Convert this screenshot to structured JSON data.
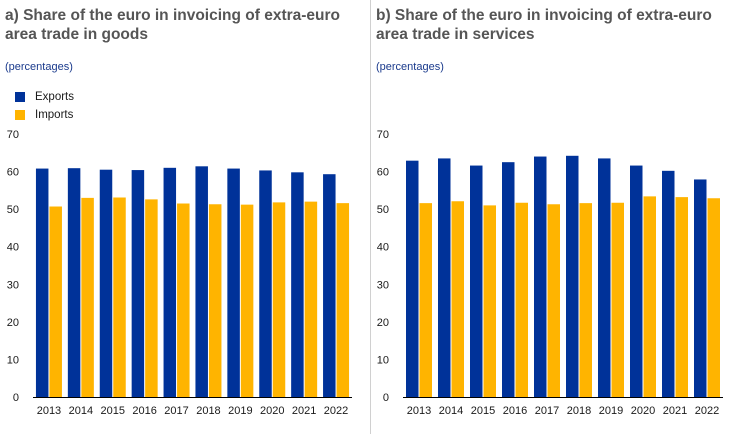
{
  "colors": {
    "exports": "#003299",
    "imports": "#ffb400",
    "axis": "#000000"
  },
  "chart_data": [
    {
      "type": "bar",
      "title": "a) Share of the euro in invoicing of extra-euro area trade in goods",
      "unit_label": "(percentages)",
      "categories": [
        "2013",
        "2014",
        "2015",
        "2016",
        "2017",
        "2018",
        "2019",
        "2020",
        "2021",
        "2022"
      ],
      "series": [
        {
          "name": "Exports",
          "values": [
            60.8,
            60.9,
            60.5,
            60.4,
            61.0,
            61.4,
            60.8,
            60.3,
            59.8,
            59.3
          ]
        },
        {
          "name": "Imports",
          "values": [
            50.7,
            53.0,
            53.1,
            52.6,
            51.5,
            51.3,
            51.2,
            51.8,
            52.0,
            51.6
          ]
        }
      ],
      "ylim": [
        0,
        70
      ],
      "yticks": [
        "0",
        "10",
        "20",
        "30",
        "40",
        "50",
        "60",
        "70"
      ],
      "legend": "top-left",
      "grid": false
    },
    {
      "type": "bar",
      "title": "b) Share of the euro in invoicing of extra-euro area trade in services",
      "unit_label": "(percentages)",
      "categories": [
        "2013",
        "2014",
        "2015",
        "2016",
        "2017",
        "2018",
        "2019",
        "2020",
        "2021",
        "2022"
      ],
      "series": [
        {
          "name": "Exports",
          "values": [
            62.9,
            63.5,
            61.6,
            62.5,
            64.0,
            64.2,
            63.5,
            61.6,
            60.2,
            57.9
          ]
        },
        {
          "name": "Imports",
          "values": [
            51.6,
            52.1,
            51.0,
            51.7,
            51.3,
            51.6,
            51.7,
            53.4,
            53.2,
            52.9
          ]
        }
      ],
      "ylim": [
        0,
        70
      ],
      "yticks": [
        "0",
        "10",
        "20",
        "30",
        "40",
        "50",
        "60",
        "70"
      ],
      "grid": false
    }
  ]
}
